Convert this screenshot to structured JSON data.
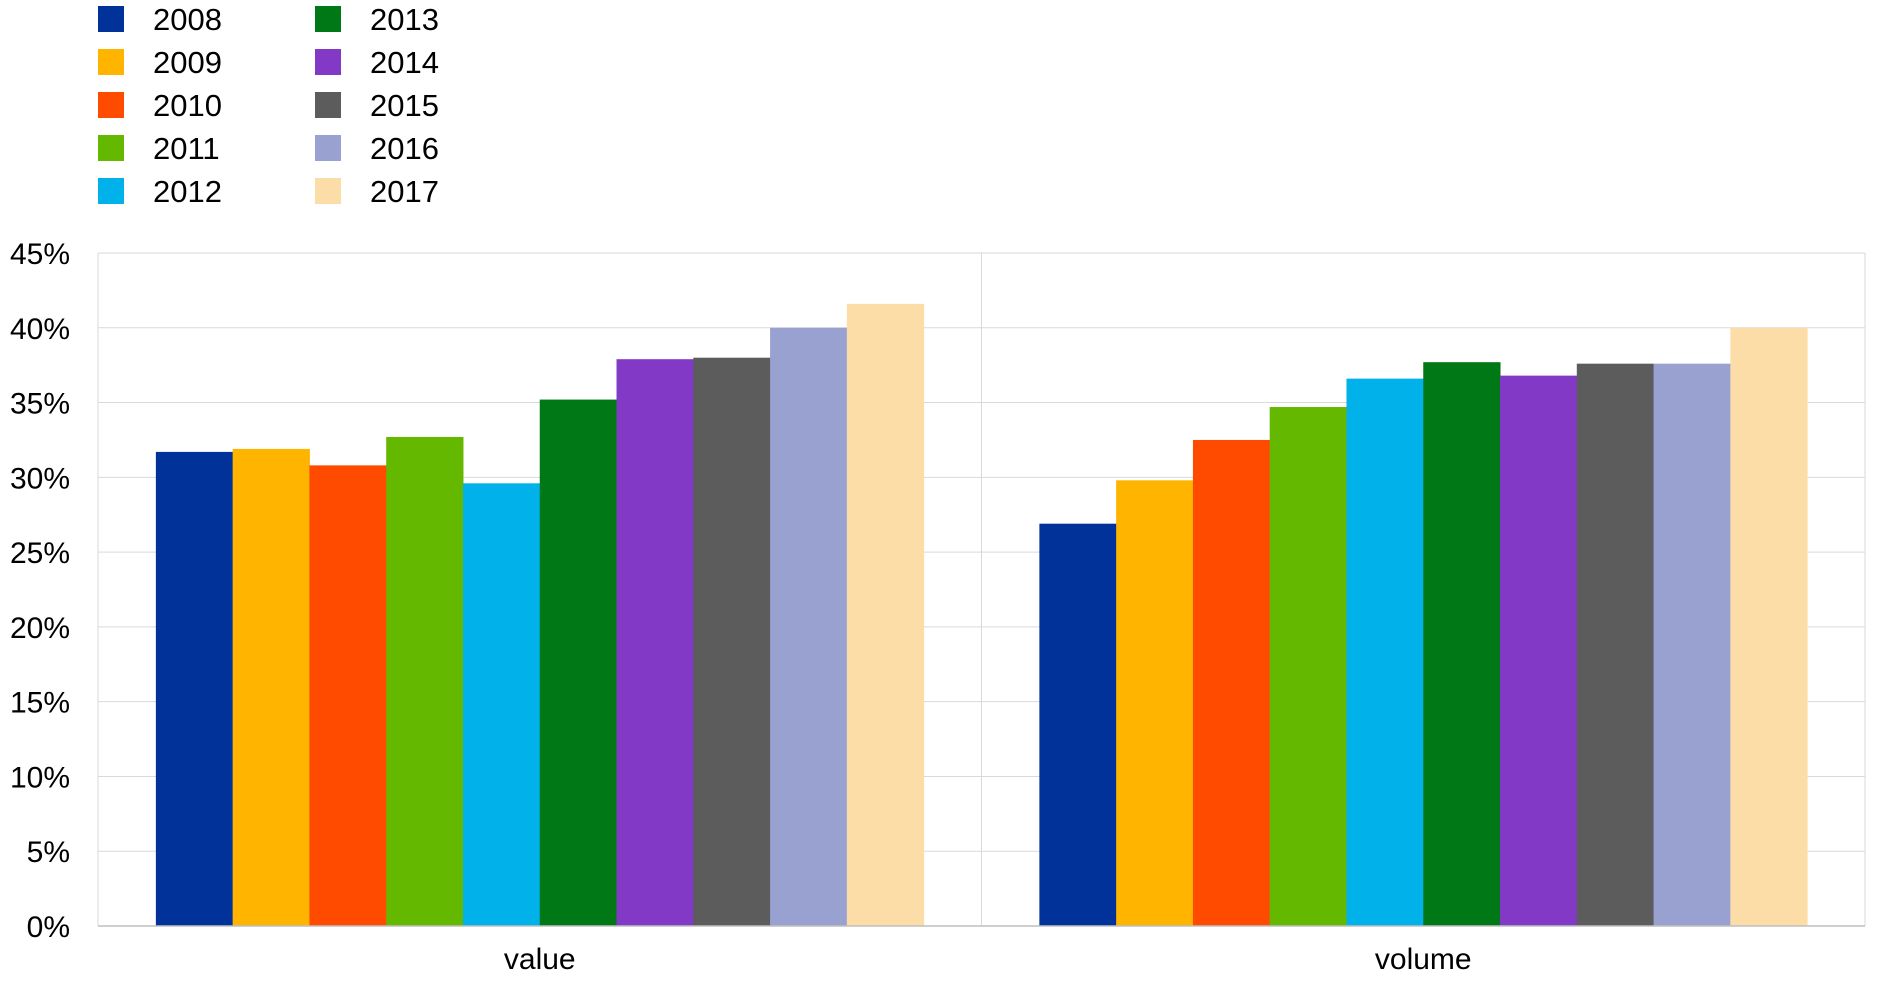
{
  "chart_data": {
    "type": "bar",
    "categories": [
      "value",
      "volume"
    ],
    "series": [
      {
        "name": "2008",
        "color": "#003299",
        "values": [
          31.7,
          26.9
        ]
      },
      {
        "name": "2009",
        "color": "#FFB400",
        "values": [
          31.9,
          29.8
        ]
      },
      {
        "name": "2010",
        "color": "#FF4B00",
        "values": [
          30.8,
          32.5
        ]
      },
      {
        "name": "2011",
        "color": "#65B800",
        "values": [
          32.7,
          34.7
        ]
      },
      {
        "name": "2012",
        "color": "#00B1EA",
        "values": [
          29.6,
          36.6
        ]
      },
      {
        "name": "2013",
        "color": "#007816",
        "values": [
          35.2,
          37.7
        ]
      },
      {
        "name": "2014",
        "color": "#8139C6",
        "values": [
          37.9,
          36.8
        ]
      },
      {
        "name": "2015",
        "color": "#5C5C5C",
        "values": [
          38.0,
          37.6
        ]
      },
      {
        "name": "2016",
        "color": "#98A1D0",
        "values": [
          40.0,
          37.6
        ]
      },
      {
        "name": "2017",
        "color": "#FDDDA7",
        "values": [
          41.6,
          40.0
        ]
      }
    ],
    "ylim": [
      0,
      45
    ],
    "yticks": [
      0,
      5,
      10,
      15,
      20,
      25,
      30,
      35,
      40,
      45
    ],
    "ytick_format": "%",
    "grid": true,
    "legend_position": "top-left",
    "title": "",
    "xlabel": "",
    "ylabel": ""
  }
}
